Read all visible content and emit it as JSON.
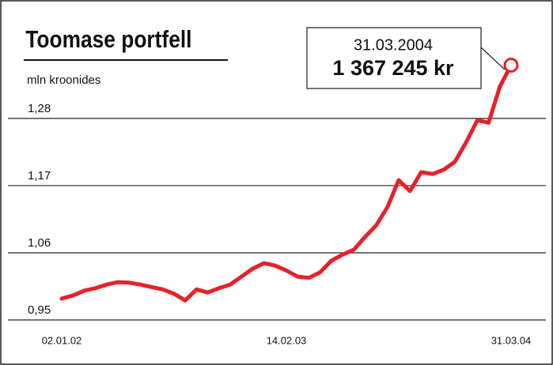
{
  "chart_data": {
    "type": "line",
    "title": "Toomase portfell",
    "subtitle": "mln kroonides",
    "categories": [
      "02.01.02",
      null,
      null,
      null,
      null,
      null,
      null,
      null,
      null,
      null,
      null,
      null,
      null,
      null,
      null,
      null,
      null,
      null,
      null,
      null,
      "14.02.03",
      null,
      null,
      null,
      null,
      null,
      null,
      null,
      null,
      null,
      null,
      null,
      null,
      null,
      null,
      null,
      null,
      null,
      null,
      null,
      "31.03.04"
    ],
    "series": [
      {
        "name": "Toomase portfell",
        "color": "#e8202a",
        "values": [
          0.985,
          0.99,
          0.998,
          1.002,
          1.008,
          1.012,
          1.011,
          1.008,
          1.004,
          1.0,
          0.993,
          0.982,
          1.0,
          0.995,
          1.002,
          1.008,
          1.021,
          1.034,
          1.043,
          1.039,
          1.031,
          1.021,
          1.019,
          1.028,
          1.047,
          1.057,
          1.065,
          1.086,
          1.105,
          1.135,
          1.179,
          1.161,
          1.192,
          1.189,
          1.196,
          1.209,
          1.241,
          1.277,
          1.273,
          1.332,
          1.367245
        ]
      }
    ],
    "ylim": [
      0.95,
      1.45
    ],
    "yticks": [
      {
        "value": 0.95,
        "label": "0,95"
      },
      {
        "value": 1.06,
        "label": "1,06"
      },
      {
        "value": 1.17,
        "label": "1,17"
      },
      {
        "value": 1.28,
        "label": "1,28"
      }
    ],
    "grid": true,
    "annotation": {
      "date": "31.03.2004",
      "value": "1 367 245 kr"
    }
  }
}
